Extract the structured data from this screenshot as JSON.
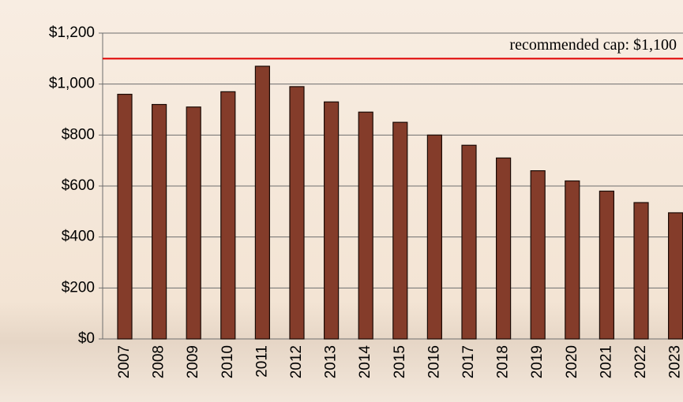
{
  "chart_data": {
    "type": "bar",
    "categories": [
      "2007",
      "2008",
      "2009",
      "2010",
      "2011",
      "2012",
      "2013",
      "2014",
      "2015",
      "2016",
      "2017",
      "2018",
      "2019",
      "2020",
      "2021",
      "2022",
      "2023"
    ],
    "values": [
      960,
      920,
      910,
      970,
      1070,
      990,
      930,
      890,
      850,
      800,
      760,
      710,
      660,
      620,
      580,
      535,
      495
    ],
    "color": "#843c2a",
    "ylim": [
      0,
      1200
    ],
    "yticks": [
      {
        "value": 0,
        "label": "$0"
      },
      {
        "value": 200,
        "label": "$200"
      },
      {
        "value": 400,
        "label": "$400"
      },
      {
        "value": 600,
        "label": "$600"
      },
      {
        "value": 800,
        "label": "$800"
      },
      {
        "value": 1000,
        "label": "$1,000"
      },
      {
        "value": 1200,
        "label": "$1,200"
      }
    ],
    "grid": true,
    "reference_line": {
      "value": 1100,
      "label": "recommended cap: $1,100",
      "color": "#e00000"
    }
  }
}
